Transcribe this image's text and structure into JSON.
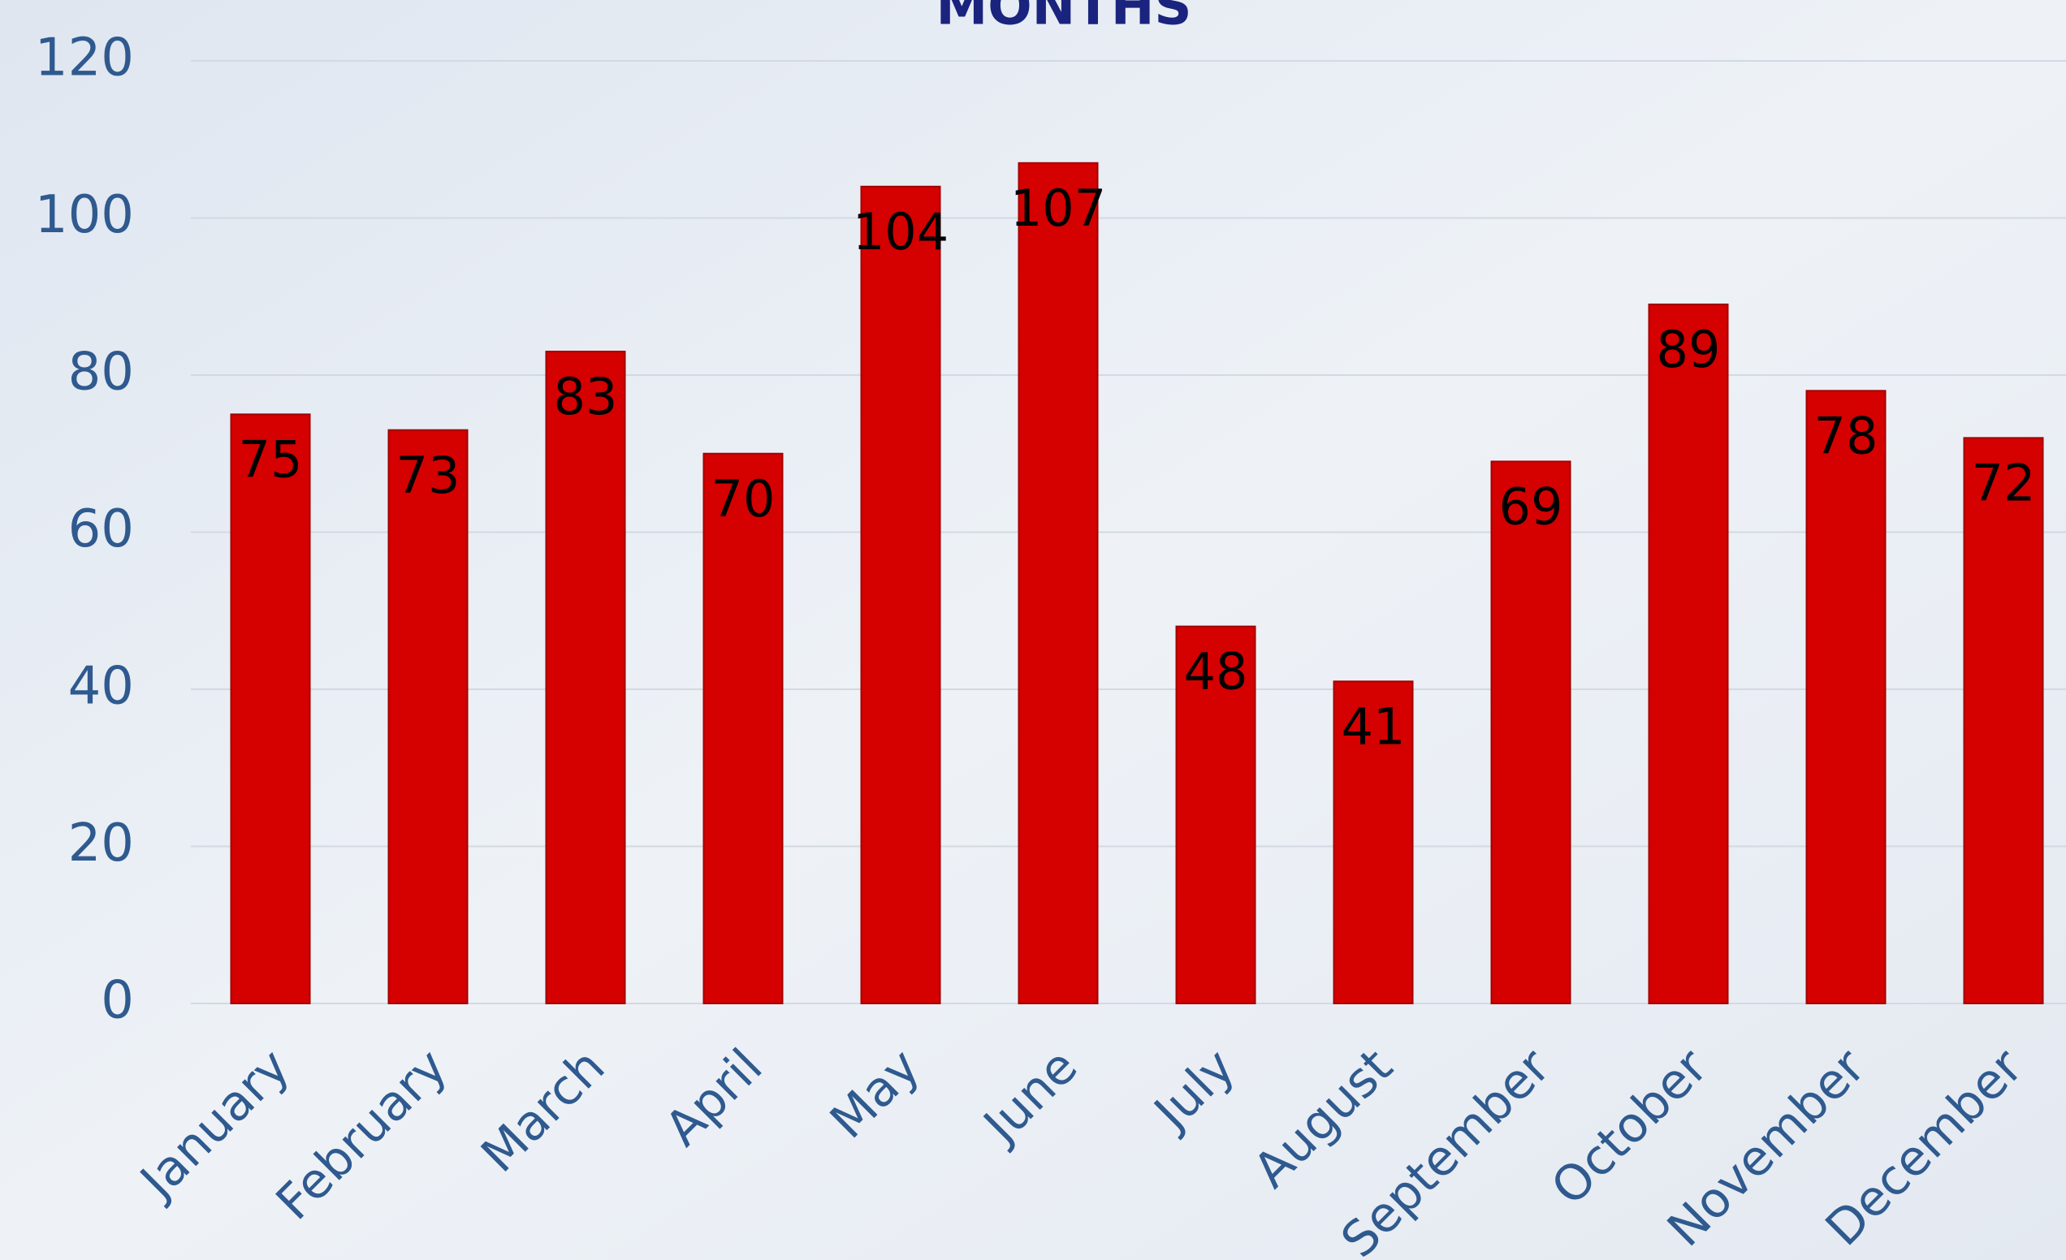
{
  "chart_data": {
    "type": "bar",
    "title": "MONTHS",
    "categories": [
      "January",
      "February",
      "March",
      "April",
      "May",
      "June",
      "July",
      "August",
      "September",
      "October",
      "November",
      "December"
    ],
    "values": [
      75,
      73,
      83,
      70,
      104,
      107,
      48,
      41,
      69,
      89,
      78,
      72
    ],
    "color": "#d50000",
    "ylim": [
      0,
      120
    ],
    "yticks": [
      0,
      20,
      40,
      60,
      80,
      100,
      120
    ],
    "grid": true
  }
}
